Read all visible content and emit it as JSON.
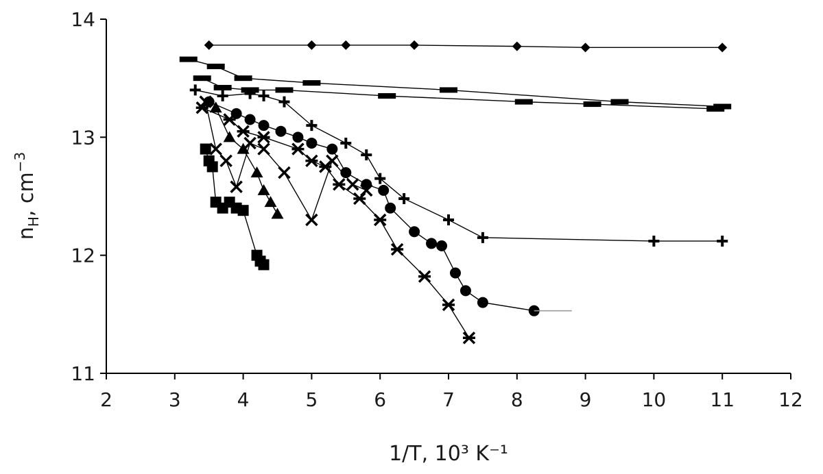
{
  "chart_data": {
    "type": "scatter",
    "xlabel": "1/T, 10³ K⁻¹",
    "ylabel": "n",
    "ylabel_sub": "H",
    "ylabel_unit": ", cm",
    "ylabel_sup": "−3",
    "xlim": [
      2,
      12
    ],
    "ylim": [
      11,
      14
    ],
    "xticks": [
      2,
      3,
      4,
      5,
      6,
      7,
      8,
      9,
      10,
      11,
      12
    ],
    "yticks": [
      11,
      12,
      13,
      14
    ],
    "grid": false,
    "legend": "none",
    "colors": {
      "marker": "#000000",
      "line": "#000000",
      "line_light": "#9a9a9a"
    },
    "series": [
      {
        "marker": "diamond",
        "x": [
          3.5,
          5.0,
          5.5,
          6.5,
          8.0,
          9.0,
          11.0
        ],
        "y": [
          13.78,
          13.78,
          13.78,
          13.78,
          13.77,
          13.76,
          13.76
        ]
      },
      {
        "marker": "dash",
        "x": [
          3.2,
          3.6,
          4.0,
          5.0,
          7.0,
          9.5,
          11.0
        ],
        "y": [
          13.66,
          13.6,
          13.5,
          13.46,
          13.4,
          13.3,
          13.26
        ]
      },
      {
        "marker": "dash",
        "x": [
          3.4,
          3.7,
          4.1,
          4.6,
          6.1,
          8.1,
          9.1,
          10.9
        ],
        "y": [
          13.5,
          13.42,
          13.4,
          13.4,
          13.35,
          13.3,
          13.28,
          13.24
        ]
      },
      {
        "marker": "plus",
        "x": [
          3.3,
          3.7,
          4.1,
          4.3,
          4.6,
          5.0,
          5.5,
          5.8,
          6.0,
          6.35,
          7.0,
          7.5,
          10.0,
          11.0
        ],
        "y": [
          13.4,
          13.35,
          13.37,
          13.35,
          13.3,
          13.1,
          12.95,
          12.85,
          12.65,
          12.48,
          12.3,
          12.15,
          12.12,
          12.12
        ]
      },
      {
        "marker": "circle",
        "x": [
          3.5,
          3.9,
          4.1,
          4.3,
          4.55,
          4.8,
          5.0,
          5.3,
          5.5,
          5.8,
          6.05,
          6.15,
          6.5,
          6.75,
          6.9,
          7.1,
          7.25,
          7.5,
          8.25
        ],
        "y": [
          13.3,
          13.2,
          13.15,
          13.1,
          13.05,
          13.0,
          12.95,
          12.9,
          12.7,
          12.6,
          12.55,
          12.4,
          12.2,
          12.1,
          12.08,
          11.85,
          11.7,
          11.6,
          11.53
        ]
      },
      {
        "marker": "star",
        "x": [
          3.4,
          3.8,
          4.0,
          4.3,
          4.8,
          5.0,
          5.2,
          5.4,
          5.7,
          6.0,
          6.25,
          6.65,
          7.0,
          7.3
        ],
        "y": [
          13.25,
          13.15,
          13.05,
          13.0,
          12.9,
          12.8,
          12.75,
          12.6,
          12.48,
          12.3,
          12.05,
          11.82,
          11.58,
          11.3
        ]
      },
      {
        "marker": "x",
        "x": [
          3.45,
          3.6,
          3.75,
          3.9,
          4.1,
          4.3,
          4.6,
          5.0,
          5.3,
          5.6,
          5.8
        ],
        "y": [
          13.3,
          12.9,
          12.8,
          12.58,
          12.95,
          12.9,
          12.7,
          12.3,
          12.8,
          12.6,
          12.55
        ]
      },
      {
        "marker": "triangle",
        "x": [
          3.6,
          3.8,
          4.0,
          4.2,
          4.3,
          4.4,
          4.5
        ],
        "y": [
          13.25,
          13.0,
          12.9,
          12.7,
          12.55,
          12.45,
          12.35
        ]
      },
      {
        "marker": "square",
        "x": [
          3.45,
          3.5,
          3.55,
          3.6,
          3.7,
          3.8,
          3.9,
          4.0,
          4.2,
          4.25,
          4.3
        ],
        "y": [
          12.9,
          12.8,
          12.75,
          12.45,
          12.4,
          12.45,
          12.4,
          12.38,
          12.0,
          11.95,
          11.92
        ]
      }
    ]
  }
}
